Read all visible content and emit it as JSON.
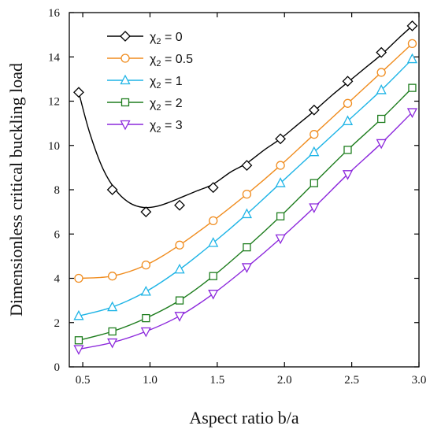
{
  "chart_data": {
    "type": "line",
    "title": "",
    "xlabel": "Aspect ratio b/a",
    "ylabel": "Dimensionless critical buckling load",
    "xlim": [
      0.4,
      3.0
    ],
    "ylim": [
      0,
      16
    ],
    "xticks": [
      0.5,
      1.0,
      1.5,
      2.0,
      2.5,
      3.0
    ],
    "xtick_labels": [
      "0.5",
      "1.0",
      "1.5",
      "2.0",
      "2.5",
      "3.0"
    ],
    "yticks": [
      0,
      2,
      4,
      6,
      8,
      10,
      12,
      14,
      16
    ],
    "ytick_labels": [
      "0",
      "2",
      "4",
      "6",
      "8",
      "10",
      "12",
      "14",
      "16"
    ],
    "grid": false,
    "legend_position": "top-left",
    "series": [
      {
        "label": {
          "symbol": "χ",
          "sub": "2",
          "rest": " = 0"
        },
        "color": "#000000",
        "marker": "diamond",
        "points": {
          "x": [
            0.47,
            0.72,
            0.97,
            1.22,
            1.47,
            1.72,
            1.97,
            2.22,
            2.47,
            2.72,
            2.95
          ],
          "y": [
            12.4,
            8.0,
            7.0,
            7.3,
            8.1,
            9.1,
            10.3,
            11.6,
            12.9,
            14.2,
            15.4
          ]
        },
        "curve": {
          "x": [
            0.47,
            0.55,
            0.65,
            0.75,
            0.85,
            0.95,
            1.05,
            1.15,
            1.25,
            1.35,
            1.47,
            1.6,
            1.72,
            1.85,
            1.97,
            2.1,
            2.22,
            2.35,
            2.47,
            2.6,
            2.72,
            2.85,
            2.95
          ],
          "y": [
            12.4,
            10.6,
            8.95,
            7.95,
            7.4,
            7.2,
            7.25,
            7.45,
            7.7,
            7.95,
            8.25,
            8.8,
            9.2,
            9.8,
            10.3,
            10.95,
            11.55,
            12.25,
            12.85,
            13.5,
            14.1,
            14.85,
            15.4
          ]
        }
      },
      {
        "label": {
          "symbol": "χ",
          "sub": "2",
          "rest": " = 0.5"
        },
        "color": "#f08c1e",
        "marker": "circle",
        "points": {
          "x": [
            0.47,
            0.72,
            0.97,
            1.22,
            1.47,
            1.72,
            1.97,
            2.22,
            2.47,
            2.72,
            2.95
          ],
          "y": [
            4.0,
            4.1,
            4.6,
            5.5,
            6.6,
            7.8,
            9.1,
            10.5,
            11.9,
            13.3,
            14.6
          ]
        }
      },
      {
        "label": {
          "symbol": "χ",
          "sub": "2",
          "rest": " = 1"
        },
        "color": "#1eb4e6",
        "marker": "triangle-up",
        "points": {
          "x": [
            0.47,
            0.72,
            0.97,
            1.22,
            1.47,
            1.72,
            1.97,
            2.22,
            2.47,
            2.72,
            2.95
          ],
          "y": [
            2.3,
            2.7,
            3.4,
            4.4,
            5.6,
            6.9,
            8.3,
            9.7,
            11.1,
            12.5,
            13.9
          ]
        }
      },
      {
        "label": {
          "symbol": "χ",
          "sub": "2",
          "rest": " = 2"
        },
        "color": "#1e7d1e",
        "marker": "square",
        "points": {
          "x": [
            0.47,
            0.72,
            0.97,
            1.22,
            1.47,
            1.72,
            1.97,
            2.22,
            2.47,
            2.72,
            2.95
          ],
          "y": [
            1.2,
            1.6,
            2.2,
            3.0,
            4.1,
            5.4,
            6.8,
            8.3,
            9.8,
            11.2,
            12.6
          ]
        }
      },
      {
        "label": {
          "symbol": "χ",
          "sub": "2",
          "rest": " = 3"
        },
        "color": "#8c28dc",
        "marker": "triangle-down",
        "points": {
          "x": [
            0.47,
            0.72,
            0.97,
            1.22,
            1.47,
            1.72,
            1.97,
            2.22,
            2.47,
            2.72,
            2.95
          ],
          "y": [
            0.8,
            1.1,
            1.6,
            2.3,
            3.3,
            4.5,
            5.8,
            7.2,
            8.7,
            10.1,
            11.5
          ]
        }
      }
    ]
  }
}
